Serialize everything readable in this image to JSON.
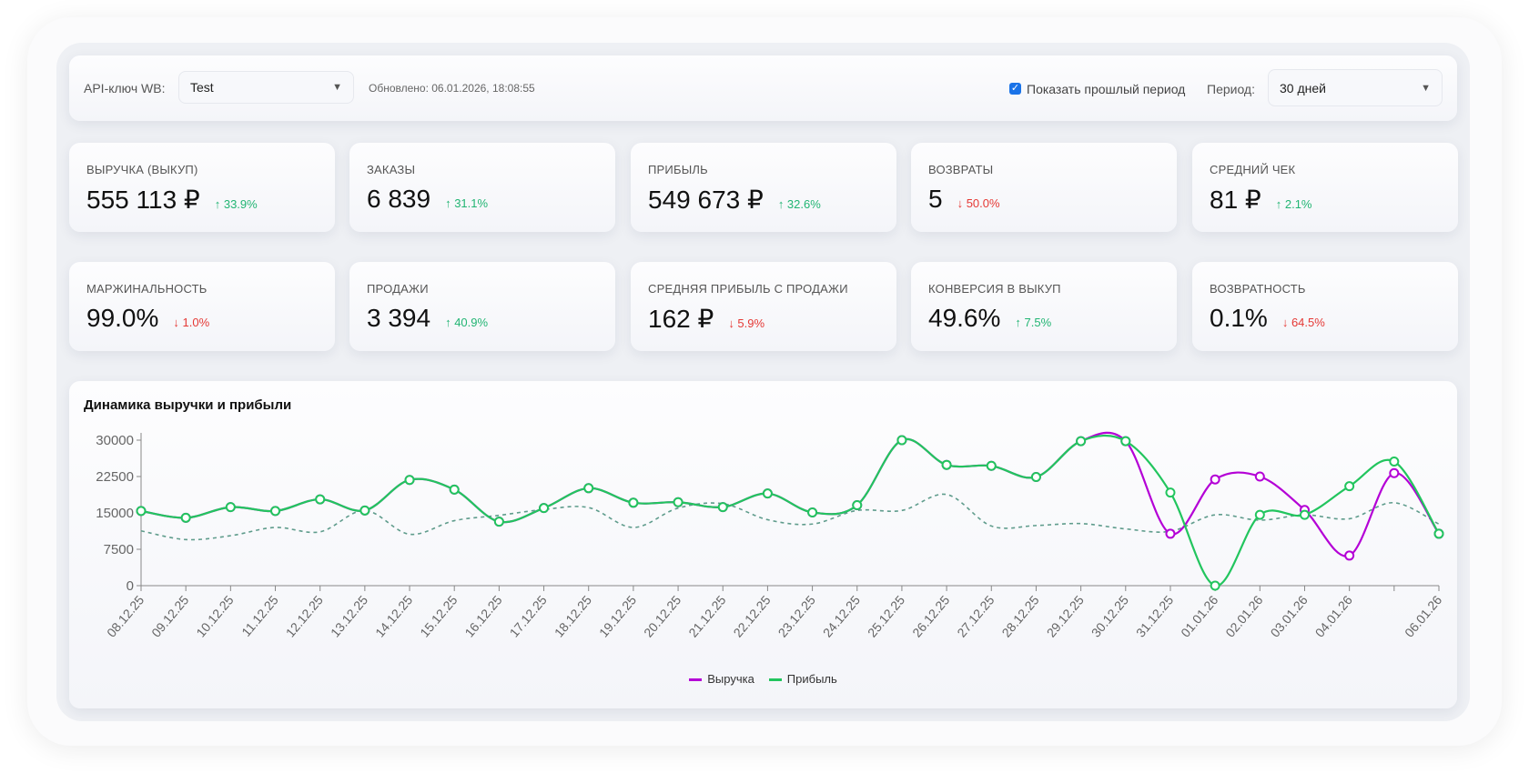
{
  "header": {
    "api_label": "API-ключ WB:",
    "api_value": "Test",
    "updated": "Обновлено: 06.01.2026, 18:08:55",
    "show_prev_label": "Показать прошлый период",
    "show_prev_checked": true,
    "period_label": "Период:",
    "period_value": "30 дней"
  },
  "kpis": [
    {
      "title": "ВЫРУЧКА (ВЫКУП)",
      "value": "555 113 ₽",
      "delta": "↑ 33.9%",
      "trend": "up"
    },
    {
      "title": "ЗАКАЗЫ",
      "value": "6 839",
      "delta": "↑ 31.1%",
      "trend": "up"
    },
    {
      "title": "ПРИБЫЛЬ",
      "value": "549 673 ₽",
      "delta": "↑ 32.6%",
      "trend": "up"
    },
    {
      "title": "ВОЗВРАТЫ",
      "value": "5",
      "delta": "↓ 50.0%",
      "trend": "down"
    },
    {
      "title": "СРЕДНИЙ ЧЕК",
      "value": "81 ₽",
      "delta": "↑ 2.1%",
      "trend": "up"
    },
    {
      "title": "МАРЖИНАЛЬНОСТЬ",
      "value": "99.0%",
      "delta": "↓ 1.0%",
      "trend": "down"
    },
    {
      "title": "ПРОДАЖИ",
      "value": "3 394",
      "delta": "↑ 40.9%",
      "trend": "up"
    },
    {
      "title": "СРЕДНЯЯ ПРИБЫЛЬ С ПРОДАЖИ",
      "value": "162 ₽",
      "delta": "↓ 5.9%",
      "trend": "down"
    },
    {
      "title": "КОНВЕРСИЯ В ВЫКУП",
      "value": "49.6%",
      "delta": "↑ 7.5%",
      "trend": "up"
    },
    {
      "title": "ВОЗВРАТНОСТЬ",
      "value": "0.1%",
      "delta": "↓ 64.5%",
      "trend": "down"
    }
  ],
  "chart_data": {
    "type": "line",
    "title": "Динамика выручки и прибыли",
    "categories": [
      "08.12.25",
      "09.12.25",
      "10.12.25",
      "11.12.25",
      "12.12.25",
      "13.12.25",
      "14.12.25",
      "15.12.25",
      "16.12.25",
      "17.12.25",
      "18.12.25",
      "19.12.25",
      "20.12.25",
      "21.12.25",
      "22.12.25",
      "23.12.25",
      "24.12.25",
      "25.12.25",
      "26.12.25",
      "27.12.25",
      "28.12.25",
      "29.12.25",
      "30.12.25",
      "31.12.25",
      "01.01.26",
      "02.01.26",
      "03.01.26",
      "04.01.26",
      "",
      "06.01.26"
    ],
    "yticks": [
      0,
      7500,
      15000,
      22500,
      30000
    ],
    "ylim": [
      0,
      30000
    ],
    "legend_position": "bottom",
    "series": [
      {
        "name": "Выручка",
        "color": "#b400d6",
        "values": [
          15400,
          14000,
          16200,
          15400,
          17800,
          15500,
          21800,
          19800,
          13200,
          16000,
          20100,
          17100,
          17200,
          16200,
          19000,
          15100,
          16600,
          30000,
          24900,
          24700,
          22400,
          29800,
          29800,
          10700,
          21900,
          22500,
          15600,
          6200,
          23200,
          10700
        ]
      },
      {
        "name": "Прибыль",
        "color": "#22c55e",
        "values": [
          15400,
          14000,
          16200,
          15400,
          17800,
          15500,
          21800,
          19800,
          13200,
          16000,
          20100,
          17100,
          17200,
          16200,
          19000,
          15100,
          16600,
          30000,
          24900,
          24700,
          22400,
          29800,
          29800,
          19200,
          0,
          14600,
          14600,
          20500,
          25600,
          10700
        ]
      },
      {
        "color": "#5f9c8c",
        "dashed": true,
        "values": [
          11300,
          9500,
          10300,
          12000,
          11100,
          15500,
          10600,
          13400,
          14500,
          15700,
          16100,
          12000,
          16000,
          16900,
          13600,
          12700,
          15500,
          15500,
          18800,
          12300,
          12400,
          12800,
          11700,
          11200,
          14600,
          13500,
          14600,
          13800,
          17100,
          12700
        ]
      }
    ]
  }
}
